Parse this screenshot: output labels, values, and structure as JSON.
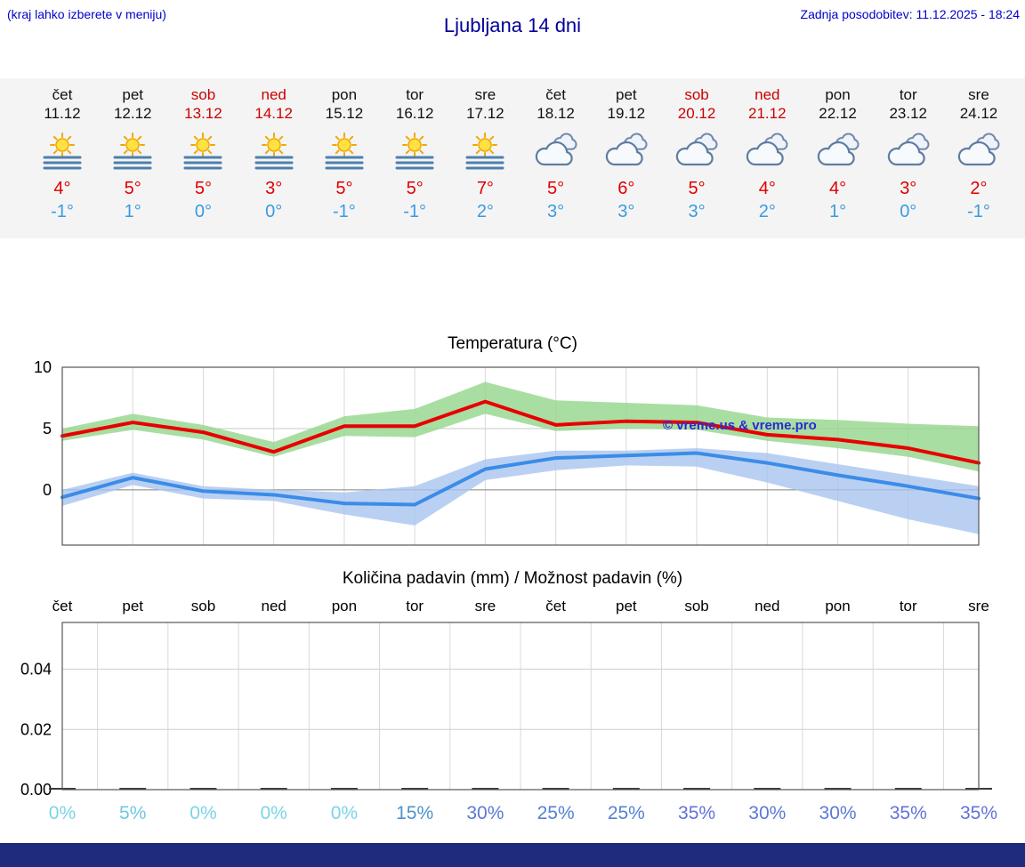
{
  "header": {
    "hint": "(kraj lahko izberete v meniju)",
    "title": "Ljubljana 14 dni",
    "updated": "Zadnja posodobitev: 11.12.2025 - 18:24"
  },
  "colors": {
    "header_blue": "#0000cc",
    "title_blue": "#000099",
    "weekend_red": "#cc0000",
    "max_temp_red": "#e00000",
    "min_temp_blue": "#3a9bdf",
    "footer_bar": "#1e2c7e",
    "watermark_blue": "#2a2ad0"
  },
  "forecast": {
    "days": [
      {
        "day": "čet",
        "date": "11.12",
        "weekend": false,
        "icon": "sun-fog",
        "tmax": "4°",
        "tmin": "-1°"
      },
      {
        "day": "pet",
        "date": "12.12",
        "weekend": false,
        "icon": "sun-fog",
        "tmax": "5°",
        "tmin": "1°"
      },
      {
        "day": "sob",
        "date": "13.12",
        "weekend": true,
        "icon": "sun-fog",
        "tmax": "5°",
        "tmin": "0°"
      },
      {
        "day": "ned",
        "date": "14.12",
        "weekend": true,
        "icon": "sun-fog",
        "tmax": "3°",
        "tmin": "0°"
      },
      {
        "day": "pon",
        "date": "15.12",
        "weekend": false,
        "icon": "sun-fog",
        "tmax": "5°",
        "tmin": "-1°"
      },
      {
        "day": "tor",
        "date": "16.12",
        "weekend": false,
        "icon": "sun-fog",
        "tmax": "5°",
        "tmin": "-1°"
      },
      {
        "day": "sre",
        "date": "17.12",
        "weekend": false,
        "icon": "sun-fog",
        "tmax": "7°",
        "tmin": "2°"
      },
      {
        "day": "čet",
        "date": "18.12",
        "weekend": false,
        "icon": "cloudy",
        "tmax": "5°",
        "tmin": "3°"
      },
      {
        "day": "pet",
        "date": "19.12",
        "weekend": false,
        "icon": "cloudy",
        "tmax": "6°",
        "tmin": "3°"
      },
      {
        "day": "sob",
        "date": "20.12",
        "weekend": true,
        "icon": "cloudy",
        "tmax": "5°",
        "tmin": "3°"
      },
      {
        "day": "ned",
        "date": "21.12",
        "weekend": true,
        "icon": "cloudy",
        "tmax": "4°",
        "tmin": "2°"
      },
      {
        "day": "pon",
        "date": "22.12",
        "weekend": false,
        "icon": "cloudy",
        "tmax": "4°",
        "tmin": "1°"
      },
      {
        "day": "tor",
        "date": "23.12",
        "weekend": false,
        "icon": "cloudy",
        "tmax": "3°",
        "tmin": "0°"
      },
      {
        "day": "sre",
        "date": "24.12",
        "weekend": false,
        "icon": "cloudy",
        "tmax": "2°",
        "tmin": "-1°"
      }
    ]
  },
  "chart_data": [
    {
      "type": "line",
      "title": "Temperatura (°C)",
      "x_labels": [
        "čet",
        "pet",
        "sob",
        "ned",
        "pon",
        "tor",
        "sre",
        "čet",
        "pet",
        "sob",
        "ned",
        "pon",
        "tor",
        "sre"
      ],
      "ylim": [
        -4.5,
        10
      ],
      "yticks": [
        10,
        5,
        0
      ],
      "ytick_labels": [
        "10",
        "5",
        "0"
      ],
      "grid": true,
      "legend": "none",
      "watermark": "© vreme.us & vreme.pro",
      "series": [
        {
          "name": "max temperature",
          "color": "#e80000",
          "band_color": "#93d68b",
          "values": [
            4.4,
            5.5,
            4.7,
            3.1,
            5.2,
            5.2,
            7.2,
            5.3,
            5.6,
            5.5,
            4.5,
            4.1,
            3.4,
            2.2
          ],
          "band_upper": [
            5.0,
            6.2,
            5.3,
            3.9,
            6.0,
            6.6,
            8.8,
            7.3,
            7.1,
            6.9,
            5.9,
            5.7,
            5.4,
            5.2
          ],
          "band_lower": [
            4.0,
            4.9,
            4.1,
            2.7,
            4.4,
            4.3,
            6.2,
            4.8,
            5.0,
            4.9,
            4.0,
            3.4,
            2.7,
            1.5
          ]
        },
        {
          "name": "min temperature",
          "color": "#3b8ce8",
          "band_color": "#a9c4ef",
          "values": [
            -0.6,
            1.0,
            -0.1,
            -0.4,
            -1.1,
            -1.2,
            1.7,
            2.6,
            2.8,
            3.0,
            2.2,
            1.2,
            0.3,
            -0.7
          ],
          "band_upper": [
            0.0,
            1.4,
            0.3,
            0.0,
            -0.2,
            0.3,
            2.5,
            3.2,
            3.2,
            3.4,
            3.0,
            2.1,
            1.2,
            0.3
          ],
          "band_lower": [
            -1.3,
            0.4,
            -0.7,
            -0.9,
            -2.0,
            -2.9,
            0.8,
            1.6,
            2.0,
            1.9,
            0.6,
            -0.9,
            -2.4,
            -3.6
          ]
        }
      ]
    },
    {
      "type": "bar",
      "title": "Količina padavin (mm) / Možnost padavin (%)",
      "categories": [
        "čet",
        "pet",
        "sob",
        "ned",
        "pon",
        "tor",
        "sre",
        "čet",
        "pet",
        "sob",
        "ned",
        "pon",
        "tor",
        "sre"
      ],
      "values": [
        0,
        0,
        0,
        0,
        0,
        0,
        0,
        0,
        0,
        0,
        0,
        0,
        0,
        0
      ],
      "ylim": [
        0,
        0.0555
      ],
      "yticks": [
        0.04,
        0.02,
        0
      ],
      "ytick_labels": [
        "0.04",
        "0.02",
        "0.00"
      ],
      "probabilities": [
        {
          "label": "0%",
          "color": "#7dd3e8"
        },
        {
          "label": "5%",
          "color": "#6cc8e3"
        },
        {
          "label": "0%",
          "color": "#7dd3e8"
        },
        {
          "label": "0%",
          "color": "#7dd3e8"
        },
        {
          "label": "0%",
          "color": "#7dd3e8"
        },
        {
          "label": "15%",
          "color": "#4d92cc"
        },
        {
          "label": "30%",
          "color": "#5b79d6"
        },
        {
          "label": "25%",
          "color": "#5580d4"
        },
        {
          "label": "25%",
          "color": "#5580d4"
        },
        {
          "label": "35%",
          "color": "#6471da"
        },
        {
          "label": "30%",
          "color": "#5b79d6"
        },
        {
          "label": "30%",
          "color": "#5b79d6"
        },
        {
          "label": "35%",
          "color": "#6471da"
        },
        {
          "label": "35%",
          "color": "#6471da"
        }
      ]
    }
  ]
}
